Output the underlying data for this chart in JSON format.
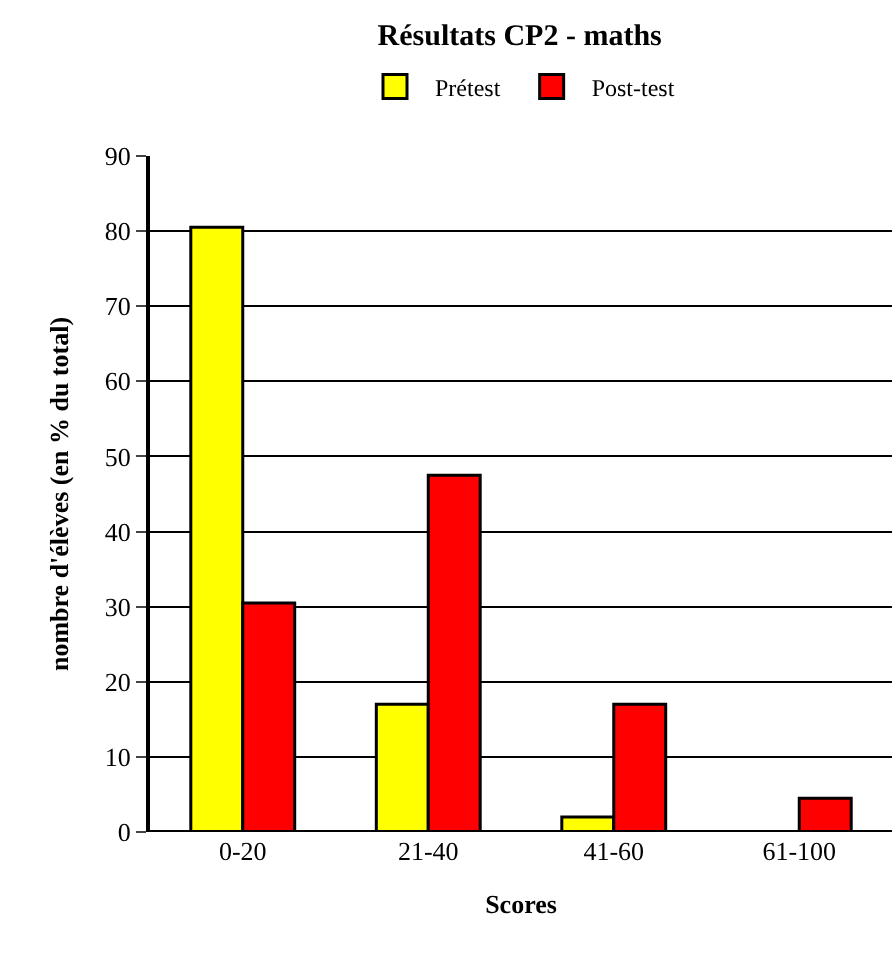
{
  "chart_data": {
    "type": "bar",
    "title": "Résultats CP2 - maths",
    "xlabel": "Scores",
    "ylabel": "nombre d'élèves (en % du total)",
    "categories": [
      "0-20",
      "21-40",
      "41-60",
      "61-100"
    ],
    "series": [
      {
        "name": "Prétest",
        "color": "#ffff00",
        "values": [
          80.5,
          17,
          2,
          null
        ]
      },
      {
        "name": "Post-test",
        "color": "#ff0000",
        "values": [
          30.5,
          47.5,
          17,
          4.5
        ]
      }
    ],
    "ylim": [
      0,
      90
    ],
    "yticks": [
      0,
      10,
      20,
      30,
      40,
      50,
      60,
      70,
      80,
      90
    ],
    "grid": "y",
    "legend": "top"
  }
}
